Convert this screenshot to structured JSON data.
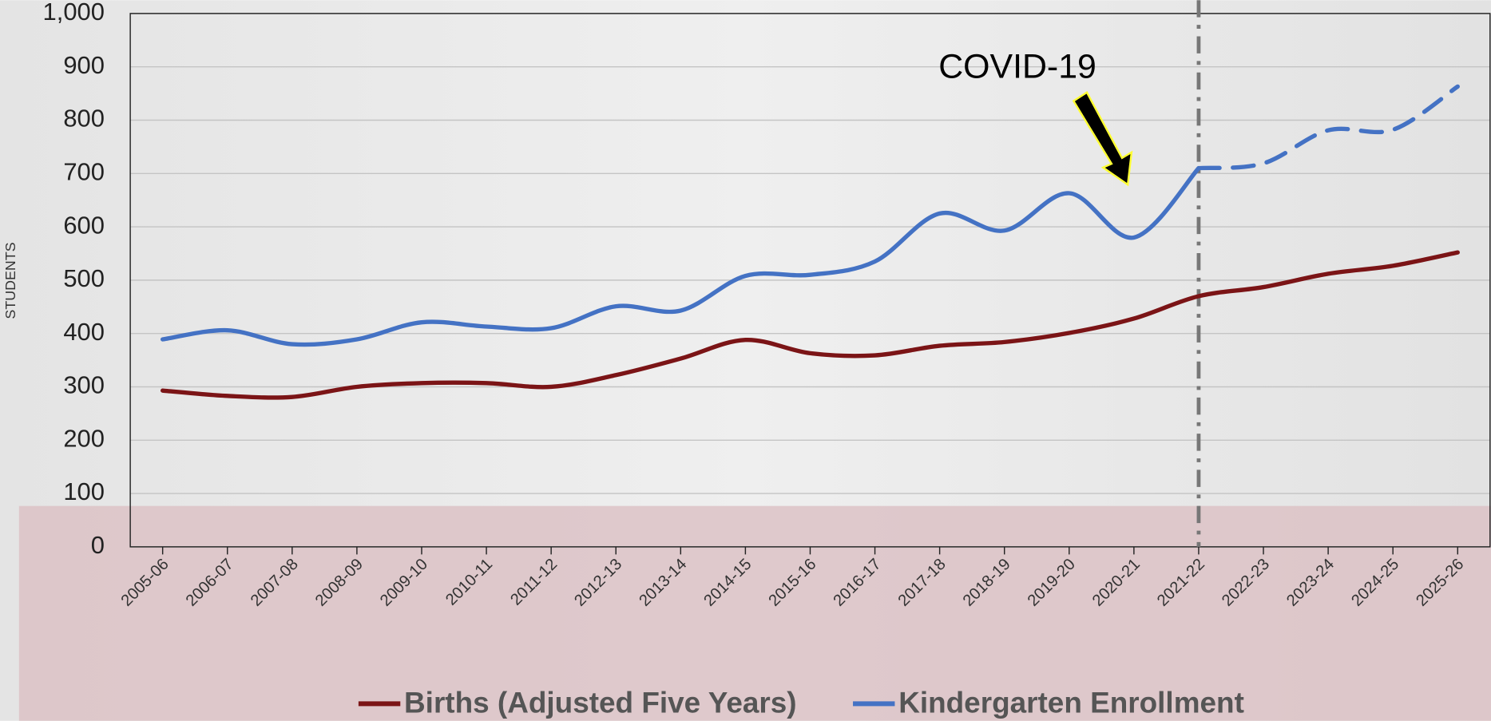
{
  "chart_data": {
    "type": "line",
    "y_label": "STUDENTS",
    "annotation": "COVID-19",
    "categories": [
      "2005-06",
      "2006-07",
      "2007-08",
      "2008-09",
      "2009-10",
      "2010-11",
      "2011-12",
      "2012-13",
      "2013-14",
      "2014-15",
      "2015-16",
      "2016-17",
      "2017-18",
      "2018-19",
      "2019-20",
      "2020-21",
      "2021-22",
      "2022-23",
      "2023-24",
      "2024-25",
      "2025-26"
    ],
    "series": [
      {
        "name": "Births (Adjusted Five Years)",
        "color": "#7b1416",
        "values": [
          293,
          283,
          281,
          300,
          307,
          307,
          300,
          322,
          353,
          388,
          363,
          359,
          377,
          384,
          401,
          428,
          470,
          487,
          512,
          527,
          552
        ]
      },
      {
        "name": "Kindergarten Enrollment",
        "color": "#4472c4",
        "values": [
          389,
          406,
          380,
          389,
          421,
          413,
          410,
          451,
          443,
          508,
          510,
          535,
          625,
          593,
          663,
          580,
          710,
          null,
          null,
          null,
          null
        ],
        "projected_values": [
          null,
          null,
          null,
          null,
          null,
          null,
          null,
          null,
          null,
          null,
          null,
          null,
          null,
          null,
          null,
          null,
          710,
          719,
          781,
          782,
          863
        ]
      }
    ],
    "vline_at": "2021-22",
    "ylim": [
      0,
      1000
    ],
    "yticks": [
      0,
      100,
      200,
      300,
      400,
      500,
      600,
      700,
      800,
      900,
      {
        "value": 1000,
        "label": "1,000"
      }
    ],
    "grid": true
  }
}
